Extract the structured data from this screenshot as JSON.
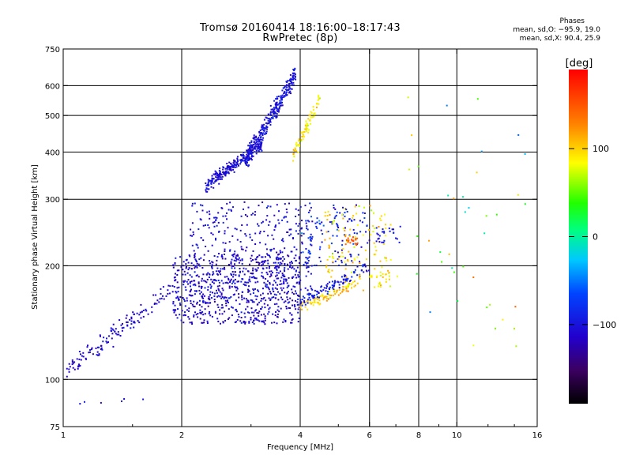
{
  "header": {
    "title_line1": "Tromsø 20160414 18:16:00–18:17:43",
    "title_line2": "RwPretec (8p)",
    "phases_title": "Phases",
    "phases_o": "mean, sd,O: −95.9, 19.0",
    "phases_x": "mean, sd,X:  90.4, 25.9"
  },
  "colorbar": {
    "label": "[deg]",
    "ticks": [
      "100",
      "0",
      "−100"
    ],
    "tick_values": [
      100,
      0,
      -100
    ],
    "range": [
      -190,
      190
    ]
  },
  "chart_data": {
    "type": "scatter",
    "xlabel": "Frequency [MHz]",
    "ylabel": "Stationary phase Virtual Height [km]",
    "xscale": "log",
    "yscale": "log",
    "xlim": [
      1,
      16
    ],
    "ylim": [
      75,
      750
    ],
    "x_ticks": [
      {
        "value": 1,
        "label": "1"
      },
      {
        "value": 2,
        "label": "2"
      },
      {
        "value": 4,
        "label": "4"
      },
      {
        "value": 6,
        "label": "6"
      },
      {
        "value": 8,
        "label": "8"
      },
      {
        "value": 10,
        "label": "10"
      },
      {
        "value": 16,
        "label": "16"
      }
    ],
    "y_ticks": [
      {
        "value": 75,
        "label": "75"
      },
      {
        "value": 100,
        "label": "100"
      },
      {
        "value": 200,
        "label": "200"
      },
      {
        "value": 300,
        "label": "300"
      },
      {
        "value": 400,
        "label": "400"
      },
      {
        "value": 500,
        "label": "500"
      },
      {
        "value": 600,
        "label": "600"
      },
      {
        "value": 750,
        "label": "750"
      }
    ],
    "x_gridlines": [
      2,
      4,
      6,
      8,
      10
    ],
    "y_gridlines": [
      100,
      200,
      300,
      400,
      500,
      600
    ],
    "grid": true,
    "clusters": [
      {
        "name": "low-ramp",
        "fmin": 1.02,
        "fmax": 1.9,
        "hmin": 105,
        "hmax": 175,
        "trend": "rising",
        "phase": -110,
        "spread": 15,
        "n": 140
      },
      {
        "name": "e-region-dense",
        "fmin": 1.9,
        "fmax": 4.0,
        "hmin": 140,
        "hmax": 215,
        "trend": "flat",
        "phase": -110,
        "spread": 18,
        "n": 650
      },
      {
        "name": "f1-columns",
        "fmin": 2.1,
        "fmax": 4.3,
        "hmin": 160,
        "hmax": 295,
        "trend": "flat",
        "phase": -105,
        "spread": 18,
        "n": 380
      },
      {
        "name": "upper-f-left",
        "fmin": 2.3,
        "fmax": 3.2,
        "hmin": 325,
        "hmax": 420,
        "trend": "rising",
        "phase": -105,
        "spread": 15,
        "n": 260
      },
      {
        "name": "upper-f-center",
        "fmin": 2.9,
        "fmax": 3.9,
        "hmin": 380,
        "hmax": 640,
        "trend": "rising",
        "phase": -100,
        "spread": 15,
        "n": 300
      },
      {
        "name": "upper-f-yellow",
        "fmin": 3.8,
        "fmax": 4.5,
        "hmin": 380,
        "hmax": 560,
        "trend": "rising",
        "phase": 90,
        "spread": 20,
        "n": 80
      },
      {
        "name": "x-trace-low",
        "fmin": 4.0,
        "fmax": 5.6,
        "hmin": 155,
        "hmax": 180,
        "trend": "rising",
        "phase": 100,
        "spread": 25,
        "n": 90
      },
      {
        "name": "o-trace-low",
        "fmin": 4.0,
        "fmax": 6.0,
        "hmin": 160,
        "hmax": 200,
        "trend": "rising",
        "phase": -95,
        "spread": 20,
        "n": 110
      },
      {
        "name": "mid-mixed",
        "fmin": 4.0,
        "fmax": 6.0,
        "hmin": 200,
        "hmax": 290,
        "trend": "flat",
        "phase": -90,
        "spread": 40,
        "n": 120
      },
      {
        "name": "mid-warm",
        "fmin": 4.6,
        "fmax": 6.8,
        "hmin": 170,
        "hmax": 290,
        "trend": "flat",
        "phase": 95,
        "spread": 30,
        "n": 110
      },
      {
        "name": "red-blob",
        "fmin": 5.2,
        "fmax": 5.6,
        "hmin": 225,
        "hmax": 240,
        "trend": "flat",
        "phase": 150,
        "spread": 10,
        "n": 20
      },
      {
        "name": "right-o",
        "fmin": 6.2,
        "fmax": 7.2,
        "hmin": 230,
        "hmax": 260,
        "trend": "flat",
        "phase": -100,
        "spread": 15,
        "n": 25
      },
      {
        "name": "right-x",
        "fmin": 6.0,
        "fmax": 7.1,
        "hmin": 175,
        "hmax": 200,
        "trend": "flat",
        "phase": 90,
        "spread": 20,
        "n": 25
      },
      {
        "name": "sparse-far",
        "fmin": 7.5,
        "fmax": 15.0,
        "hmin": 120,
        "hmax": 560,
        "trend": "flat",
        "phase": 60,
        "spread": 120,
        "n": 40
      },
      {
        "name": "near-origin",
        "fmin": 1.05,
        "fmax": 1.6,
        "hmin": 86,
        "hmax": 90,
        "trend": "flat",
        "phase": -100,
        "spread": 10,
        "n": 6
      }
    ]
  }
}
